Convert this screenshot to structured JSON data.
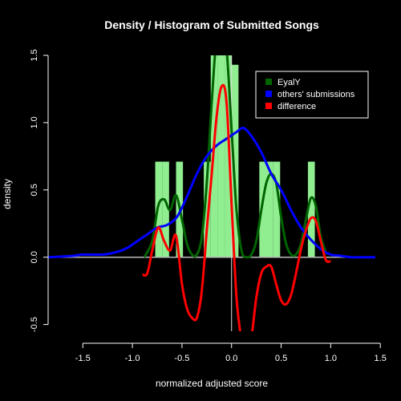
{
  "chart_data": {
    "type": "histogram_density",
    "title": "Density / Histogram of Submitted Songs",
    "xlabel": "normalized adjusted score",
    "ylabel": "density",
    "xlim": [
      -1.85,
      1.45
    ],
    "ylim": [
      -0.55,
      1.5
    ],
    "xticks": [
      "-1.5",
      "-1.0",
      "-0.5",
      "0.0",
      "0.5",
      "1.0",
      "1.5"
    ],
    "yticks": [
      "-0.5",
      "0.0",
      "0.5",
      "1.0",
      "1.5"
    ],
    "colors": {
      "background": "#000000",
      "histogram": "#90ee90",
      "eyaly": "#006400",
      "others": "#0000ff",
      "difference": "#ff0000",
      "axes": "#ffffff"
    },
    "histogram": {
      "bin_width": 0.07,
      "bars": [
        {
          "x": -0.735,
          "h": 0.71
        },
        {
          "x": -0.665,
          "h": 0.71
        },
        {
          "x": -0.525,
          "h": 0.71
        },
        {
          "x": -0.245,
          "h": 0.71
        },
        {
          "x": -0.175,
          "h": 1.5
        },
        {
          "x": -0.105,
          "h": 1.5
        },
        {
          "x": -0.035,
          "h": 1.5
        },
        {
          "x": 0.035,
          "h": 1.43
        },
        {
          "x": 0.315,
          "h": 0.71
        },
        {
          "x": 0.385,
          "h": 0.71
        },
        {
          "x": 0.455,
          "h": 0.71
        },
        {
          "x": 0.805,
          "h": 0.71
        }
      ]
    },
    "series": [
      {
        "name": "EyalY",
        "color": "#006400",
        "x": [
          -0.88,
          -0.8,
          -0.74,
          -0.68,
          -0.62,
          -0.56,
          -0.5,
          -0.45,
          -0.4,
          -0.35,
          -0.3,
          -0.25,
          -0.2,
          -0.15,
          -0.1,
          -0.05,
          0.0,
          0.05,
          0.1,
          0.15,
          0.2,
          0.25,
          0.3,
          0.35,
          0.4,
          0.45,
          0.5,
          0.55,
          0.6,
          0.65,
          0.7,
          0.75,
          0.8,
          0.85,
          0.9,
          0.96
        ],
        "y": [
          0.0,
          0.12,
          0.38,
          0.43,
          0.35,
          0.46,
          0.28,
          0.1,
          0.02,
          0.02,
          0.15,
          0.55,
          1.15,
          1.65,
          1.75,
          1.55,
          0.95,
          0.35,
          0.05,
          0.0,
          0.02,
          0.12,
          0.35,
          0.55,
          0.62,
          0.55,
          0.3,
          0.1,
          0.02,
          0.02,
          0.1,
          0.28,
          0.44,
          0.38,
          0.15,
          0.02
        ]
      },
      {
        "name": "others' submissions",
        "color": "#0000ff",
        "x": [
          -1.85,
          -1.6,
          -1.5,
          -1.3,
          -1.15,
          -1.05,
          -0.95,
          -0.85,
          -0.75,
          -0.65,
          -0.55,
          -0.45,
          -0.35,
          -0.25,
          -0.15,
          -0.05,
          0.05,
          0.12,
          0.2,
          0.3,
          0.4,
          0.5,
          0.6,
          0.7,
          0.8,
          0.9,
          1.0,
          1.1,
          1.2,
          1.3,
          1.45
        ],
        "y": [
          0.0,
          0.01,
          0.02,
          0.02,
          0.04,
          0.07,
          0.12,
          0.17,
          0.22,
          0.24,
          0.3,
          0.45,
          0.62,
          0.75,
          0.83,
          0.88,
          0.93,
          0.96,
          0.9,
          0.78,
          0.62,
          0.5,
          0.35,
          0.22,
          0.13,
          0.06,
          0.02,
          0.01,
          0.0,
          0.0,
          0.0
        ]
      },
      {
        "name": "difference",
        "color": "#ff0000",
        "x": [
          -0.9,
          -0.85,
          -0.8,
          -0.74,
          -0.68,
          -0.62,
          -0.56,
          -0.5,
          -0.45,
          -0.4,
          -0.35,
          -0.3,
          -0.25,
          -0.2,
          -0.15,
          -0.1,
          -0.05,
          0.0,
          0.05,
          0.1,
          0.15,
          0.2,
          0.25,
          0.3,
          0.35,
          0.4,
          0.45,
          0.5,
          0.55,
          0.6,
          0.65,
          0.7,
          0.75,
          0.8,
          0.85,
          0.9,
          0.95,
          1.0
        ],
        "y": [
          -0.13,
          -0.12,
          0.05,
          0.22,
          0.12,
          0.05,
          0.16,
          -0.2,
          -0.38,
          -0.45,
          -0.45,
          -0.25,
          0.2,
          0.62,
          1.05,
          1.27,
          1.15,
          0.4,
          -0.3,
          -0.62,
          -0.78,
          -0.6,
          -0.3,
          -0.12,
          -0.07,
          -0.07,
          -0.2,
          -0.32,
          -0.35,
          -0.28,
          -0.12,
          0.06,
          0.2,
          0.29,
          0.27,
          0.12,
          -0.02,
          -0.03
        ]
      }
    ],
    "legend": {
      "position": "top-right",
      "entries": [
        "EyalY",
        "others' submissions",
        "difference"
      ]
    }
  }
}
